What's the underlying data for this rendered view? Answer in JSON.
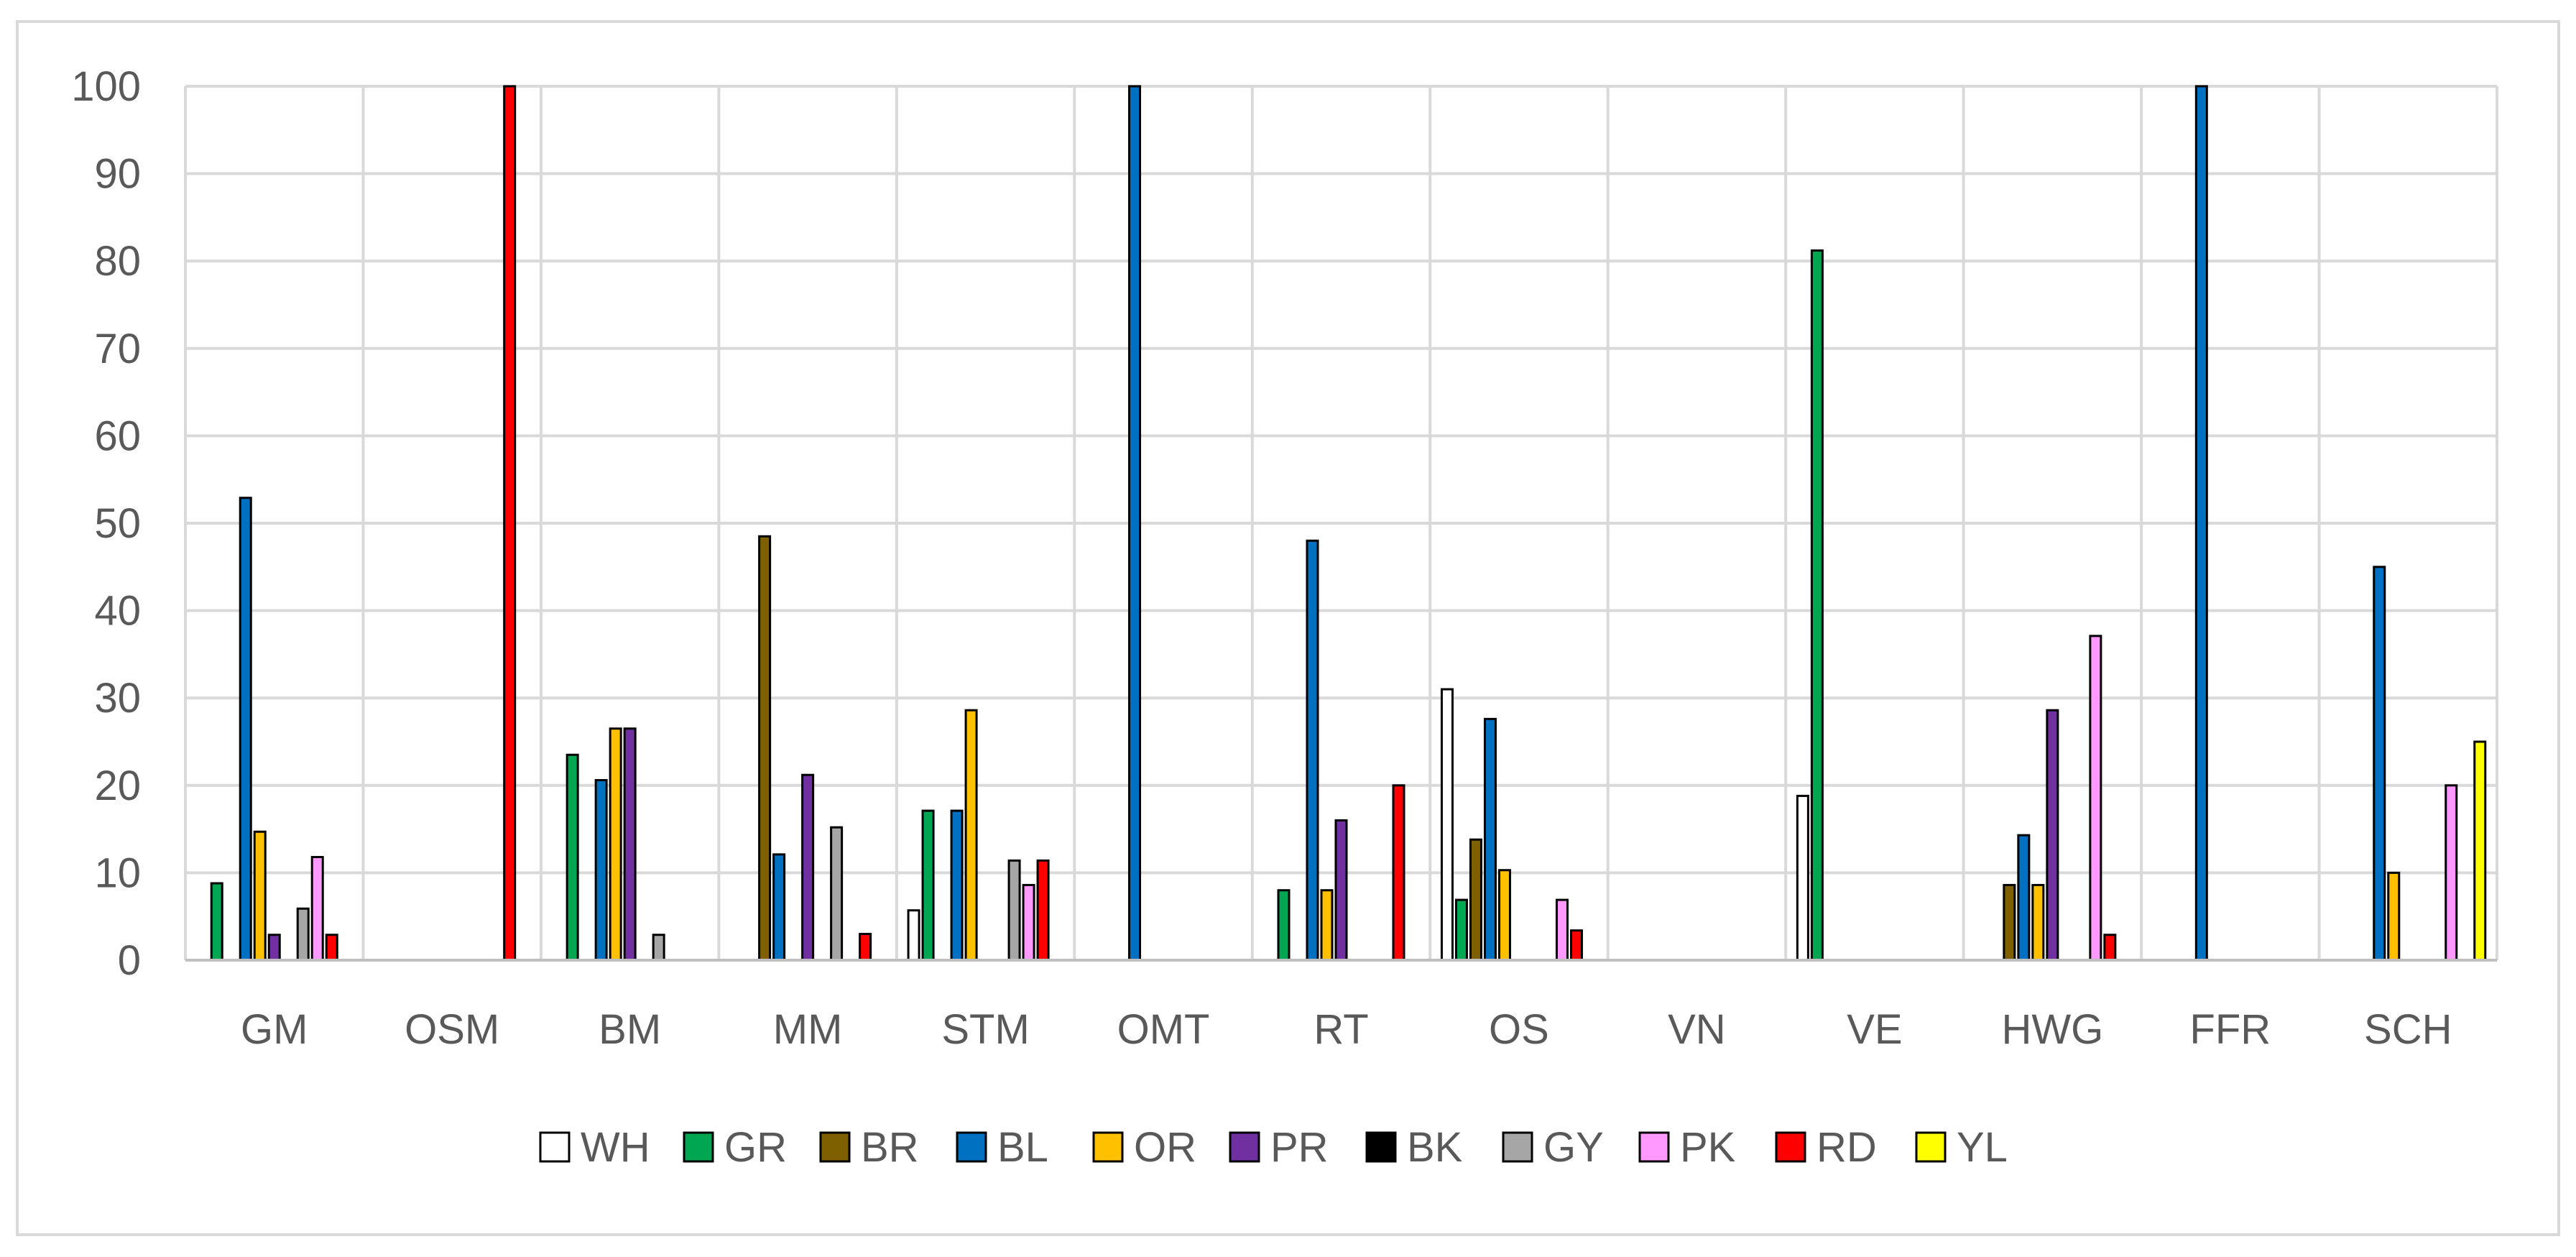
{
  "chart_data": {
    "type": "bar",
    "title": "",
    "xlabel": "",
    "ylabel": "",
    "ylim": [
      0,
      100
    ],
    "yticks": [
      0,
      10,
      20,
      30,
      40,
      50,
      60,
      70,
      80,
      90,
      100
    ],
    "grid": true,
    "legend_position": "bottom",
    "categories": [
      "GM",
      "OSM",
      "BM",
      "MM",
      "STM",
      "OMT",
      "RT",
      "OS",
      "VN",
      "VE",
      "HWG",
      "FFR",
      "SCH"
    ],
    "series": [
      {
        "name": "WH",
        "color": "#ffffff",
        "values": [
          0,
          0,
          0,
          0,
          5.7,
          0,
          0,
          31,
          0,
          18.8,
          0,
          0,
          0
        ]
      },
      {
        "name": "GR",
        "color": "#00a651",
        "values": [
          8.8,
          0,
          23.5,
          0,
          17.1,
          0,
          8,
          6.9,
          0,
          81.2,
          0,
          0,
          0
        ]
      },
      {
        "name": "BR",
        "color": "#7f6000",
        "values": [
          0,
          0,
          0,
          48.5,
          0,
          0,
          0,
          13.8,
          0,
          0,
          8.6,
          0,
          0
        ]
      },
      {
        "name": "BL",
        "color": "#0070c0",
        "values": [
          52.9,
          0,
          20.6,
          12.1,
          17.1,
          100,
          48,
          27.6,
          0,
          0,
          14.3,
          100,
          45
        ]
      },
      {
        "name": "OR",
        "color": "#ffc000",
        "values": [
          14.7,
          0,
          26.5,
          0,
          28.6,
          0,
          8,
          10.3,
          0,
          0,
          8.6,
          0,
          10
        ]
      },
      {
        "name": "PR",
        "color": "#7030a0",
        "values": [
          2.9,
          0,
          26.5,
          21.2,
          0,
          0,
          16,
          0,
          0,
          0,
          28.6,
          0,
          0
        ]
      },
      {
        "name": "BK",
        "color": "#000000",
        "values": [
          0,
          0,
          0,
          0,
          0,
          0,
          0,
          0,
          0,
          0,
          0,
          0,
          0
        ]
      },
      {
        "name": "GY",
        "color": "#a6a6a6",
        "values": [
          5.9,
          0,
          2.9,
          15.2,
          11.4,
          0,
          0,
          0,
          0,
          0,
          0,
          0,
          0
        ]
      },
      {
        "name": "PK",
        "color": "#ff99ff",
        "values": [
          11.8,
          0,
          0,
          0,
          8.6,
          0,
          0,
          6.9,
          0,
          0,
          37.1,
          0,
          20
        ]
      },
      {
        "name": "RD",
        "color": "#ff0000",
        "values": [
          2.9,
          100,
          0,
          3,
          11.4,
          0,
          20,
          3.4,
          0,
          0,
          2.9,
          0,
          0
        ]
      },
      {
        "name": "YL",
        "color": "#ffff00",
        "values": [
          0,
          0,
          0,
          0,
          0,
          0,
          0,
          0,
          0,
          0,
          0,
          0,
          25
        ]
      }
    ]
  }
}
